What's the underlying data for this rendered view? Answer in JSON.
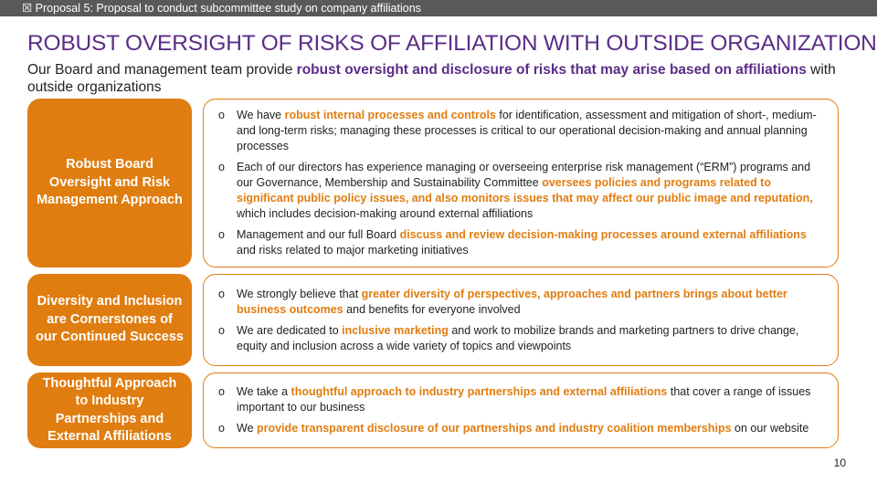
{
  "header": {
    "tag": "☒ Proposal 5: Proposal to conduct subcommittee study on company affiliations",
    "title": "ROBUST OVERSIGHT OF RISKS OF AFFILIATION WITH OUTSIDE ORGANIZATIONS",
    "subtitle": [
      {
        "text": "Our Board and management team provide "
      },
      {
        "text": "robust oversight and disclosure of risks that may arise based on affiliations",
        "highlight": true
      },
      {
        "text": " with outside organizations"
      }
    ]
  },
  "sections": [
    {
      "label": "Robust Board Oversight and Risk Management Approach",
      "bullets": [
        [
          {
            "text": "We have "
          },
          {
            "text": "robust internal processes and controls",
            "highlight": true
          },
          {
            "text": " for identification, assessment and mitigation of short-, medium- and long-term risks; managing these processes is critical to our operational decision-making and annual planning processes"
          }
        ],
        [
          {
            "text": "Each of our directors has experience managing or overseeing enterprise risk management (“ERM”) programs and our Governance, Membership and Sustainability Committee "
          },
          {
            "text": "oversees policies and programs related to significant public policy issues, and also monitors issues that may affect our public image and reputation,",
            "highlight": true
          },
          {
            "text": " which includes decision-making around external affiliations"
          }
        ],
        [
          {
            "text": "Management and our full Board "
          },
          {
            "text": "discuss and review decision-making processes around external affiliations",
            "highlight": true
          },
          {
            "text": " and risks related to major marketing initiatives"
          }
        ]
      ]
    },
    {
      "label": "Diversity and Inclusion are Cornerstones of our Continued Success",
      "bullets": [
        [
          {
            "text": "We strongly believe that "
          },
          {
            "text": "greater diversity of perspectives, approaches and partners brings about better business outcomes",
            "highlight": true
          },
          {
            "text": " and benefits for everyone involved"
          }
        ],
        [
          {
            "text": "We are dedicated to "
          },
          {
            "text": "inclusive marketing",
            "highlight": true
          },
          {
            "text": " and work to mobilize brands and marketing partners to drive change, equity and inclusion across a wide variety of topics and viewpoints"
          }
        ]
      ]
    },
    {
      "label": "Thoughtful Approach to Industry Partnerships and External Affiliations",
      "bullets": [
        [
          {
            "text": "We take a "
          },
          {
            "text": "thoughtful approach to industry partnerships and external affiliations",
            "highlight": true
          },
          {
            "text": " that cover a range of issues important to our business"
          }
        ],
        [
          {
            "text": "We "
          },
          {
            "text": "provide transparent disclosure of our partnerships and industry coalition memberships",
            "highlight": true
          },
          {
            "text": " on our website"
          }
        ]
      ]
    }
  ],
  "footer": {
    "page_number": "10"
  }
}
